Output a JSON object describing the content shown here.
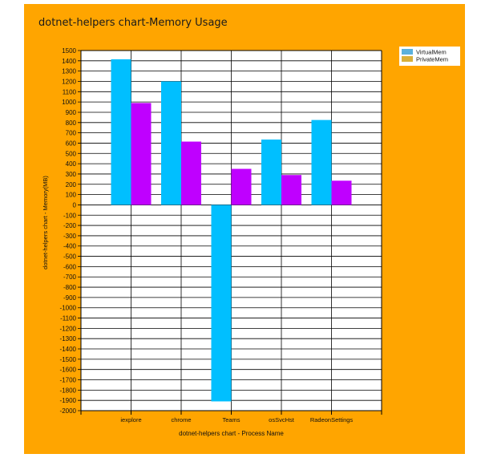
{
  "chart_data": {
    "type": "bar",
    "title": "dotnet-helpers chart-Memory Usage",
    "xlabel": "dotnet-helpers chart - Process Name",
    "ylabel": "dotnet-helpers chart - Memory(MB)",
    "categories": [
      "iexplore",
      "chrome",
      "Teams",
      "osSvcHst",
      "RadeonSettings"
    ],
    "series": [
      {
        "name": "VirtualMem",
        "values": [
          1415,
          1200,
          -1910,
          635,
          825
        ],
        "color": "#00BFFF",
        "legend_color": "#5BB1DC"
      },
      {
        "name": "PrivateMem",
        "values": [
          990,
          615,
          350,
          290,
          235
        ],
        "color": "#BF00FF",
        "legend_color": "#D9B03A"
      }
    ],
    "ylim": [
      -2000,
      1500
    ],
    "ytick_step": 100,
    "grid": true,
    "legend": "top-right",
    "colors": {
      "background": "#FFA500",
      "plot": "#FFFFFF",
      "grid": "#000000"
    }
  }
}
